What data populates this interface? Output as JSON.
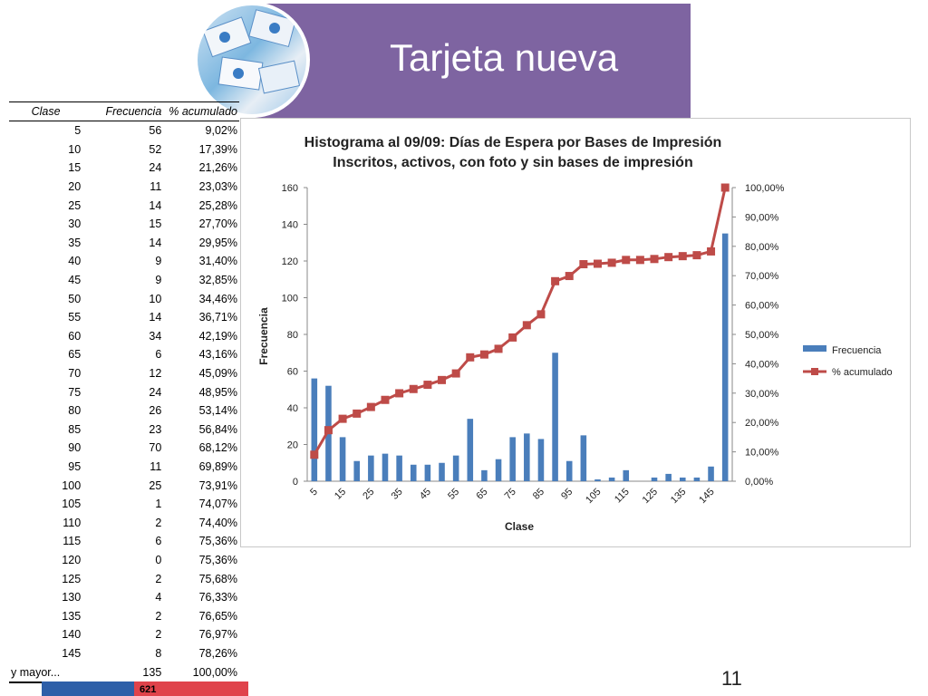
{
  "slide": {
    "title": "Tarjeta nueva",
    "page_number": "11"
  },
  "table": {
    "headers": [
      "Clase",
      "Frecuencia",
      "% acumulado"
    ],
    "rows": [
      [
        "5",
        "56",
        "9,02%"
      ],
      [
        "10",
        "52",
        "17,39%"
      ],
      [
        "15",
        "24",
        "21,26%"
      ],
      [
        "20",
        "11",
        "23,03%"
      ],
      [
        "25",
        "14",
        "25,28%"
      ],
      [
        "30",
        "15",
        "27,70%"
      ],
      [
        "35",
        "14",
        "29,95%"
      ],
      [
        "40",
        "9",
        "31,40%"
      ],
      [
        "45",
        "9",
        "32,85%"
      ],
      [
        "50",
        "10",
        "34,46%"
      ],
      [
        "55",
        "14",
        "36,71%"
      ],
      [
        "60",
        "34",
        "42,19%"
      ],
      [
        "65",
        "6",
        "43,16%"
      ],
      [
        "70",
        "12",
        "45,09%"
      ],
      [
        "75",
        "24",
        "48,95%"
      ],
      [
        "80",
        "26",
        "53,14%"
      ],
      [
        "85",
        "23",
        "56,84%"
      ],
      [
        "90",
        "70",
        "68,12%"
      ],
      [
        "95",
        "11",
        "69,89%"
      ],
      [
        "100",
        "25",
        "73,91%"
      ],
      [
        "105",
        "1",
        "74,07%"
      ],
      [
        "110",
        "2",
        "74,40%"
      ],
      [
        "115",
        "6",
        "75,36%"
      ],
      [
        "120",
        "0",
        "75,36%"
      ],
      [
        "125",
        "2",
        "75,68%"
      ],
      [
        "130",
        "4",
        "76,33%"
      ],
      [
        "135",
        "2",
        "76,65%"
      ],
      [
        "140",
        "2",
        "76,97%"
      ],
      [
        "145",
        "8",
        "78,26%"
      ],
      [
        "y mayor...",
        "135",
        "100,00%"
      ]
    ],
    "total": "621"
  },
  "chart_data": {
    "type": "bar",
    "title": "Histograma al 09/09: Días de Espera por Bases de Impresión",
    "subtitle": "Inscritos, activos, con foto y sin bases de impresión",
    "xlabel": "Clase",
    "ylabel": "Frecuencia",
    "categories": [
      "5",
      "10",
      "15",
      "20",
      "25",
      "30",
      "35",
      "40",
      "45",
      "50",
      "55",
      "60",
      "65",
      "70",
      "75",
      "80",
      "85",
      "90",
      "95",
      "100",
      "105",
      "110",
      "115",
      "120",
      "125",
      "130",
      "135",
      "140",
      "145",
      "y mayor..."
    ],
    "x_tick_labels": [
      "5",
      "15",
      "25",
      "35",
      "45",
      "55",
      "65",
      "75",
      "85",
      "95",
      "105",
      "115",
      "125",
      "135",
      "145"
    ],
    "ylim": [
      0,
      160
    ],
    "y_ticks": [
      "0",
      "20",
      "40",
      "60",
      "80",
      "100",
      "120",
      "140",
      "160"
    ],
    "y2lim": [
      0,
      100
    ],
    "y2_ticks": [
      "0,00%",
      "10,00%",
      "20,00%",
      "30,00%",
      "40,00%",
      "50,00%",
      "60,00%",
      "70,00%",
      "80,00%",
      "90,00%",
      "100,00%"
    ],
    "series": [
      {
        "name": "Frecuencia",
        "kind": "bar",
        "axis": "left",
        "color": "#4a7ebb",
        "values": [
          56,
          52,
          24,
          11,
          14,
          15,
          14,
          9,
          9,
          10,
          14,
          34,
          6,
          12,
          24,
          26,
          23,
          70,
          11,
          25,
          1,
          2,
          6,
          0,
          2,
          4,
          2,
          2,
          8,
          135
        ]
      },
      {
        "name": "% acumulado",
        "kind": "line",
        "axis": "right",
        "color": "#be4b48",
        "values": [
          9.02,
          17.39,
          21.26,
          23.03,
          25.28,
          27.7,
          29.95,
          31.4,
          32.85,
          34.46,
          36.71,
          42.19,
          43.16,
          45.09,
          48.95,
          53.14,
          56.84,
          68.12,
          69.89,
          73.91,
          74.07,
          74.4,
          75.36,
          75.36,
          75.68,
          76.33,
          76.65,
          76.97,
          78.26,
          100.0
        ]
      }
    ],
    "legend_position": "right",
    "grid": false
  }
}
